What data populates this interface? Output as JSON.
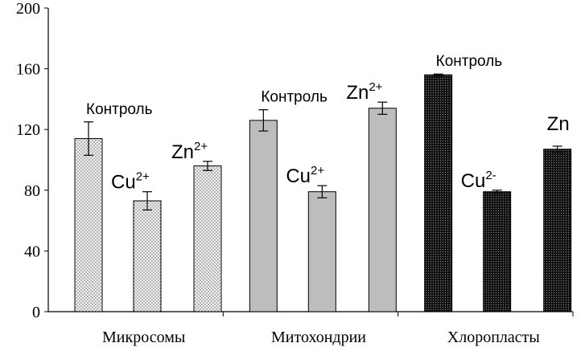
{
  "chart_data": {
    "type": "bar",
    "title": "",
    "xlabel": "",
    "ylabel": "",
    "ylim": [
      0,
      200
    ],
    "yticks": [
      0,
      40,
      80,
      120,
      160,
      200
    ],
    "grid": false,
    "legend": "none",
    "groups": [
      {
        "name": "Микросомы",
        "pattern": "light-dots",
        "bars": [
          {
            "label": "Контроль",
            "label_sup": "",
            "value": 114,
            "error": 11
          },
          {
            "label": "Cu",
            "label_sup": "2+",
            "value": 73,
            "error": 6
          },
          {
            "label": "Zn",
            "label_sup": "2+",
            "value": 96,
            "error": 3
          }
        ]
      },
      {
        "name": "Митохондрии",
        "pattern": "gray",
        "bars": [
          {
            "label": "Контроль",
            "label_sup": "",
            "value": 126,
            "error": 7
          },
          {
            "label": "Cu",
            "label_sup": "2+",
            "value": 79,
            "error": 4
          },
          {
            "label": "Zn",
            "label_sup": "2+",
            "value": 134,
            "error": 4
          }
        ]
      },
      {
        "name": "Хлоропласты",
        "pattern": "dark-dots",
        "bars": [
          {
            "label": "Контроль",
            "label_sup": "",
            "value": 156,
            "error": 0.5
          },
          {
            "label": "Cu",
            "label_sup": "2-",
            "value": 79,
            "error": 1
          },
          {
            "label": "Zn",
            "label_sup": "",
            "value": 107,
            "error": 2
          }
        ]
      }
    ]
  }
}
